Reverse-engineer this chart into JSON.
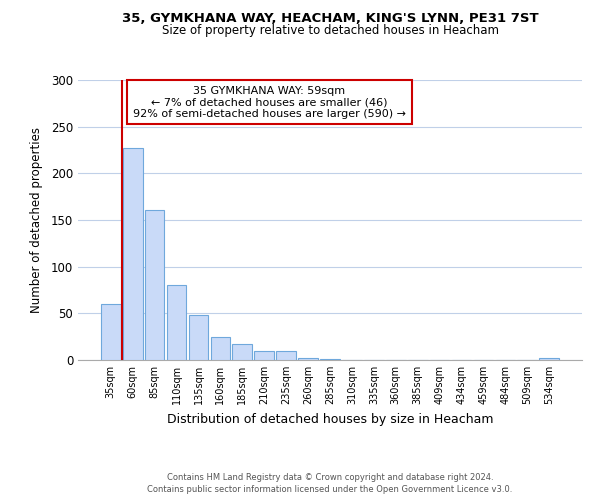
{
  "title_line1": "35, GYMKHANA WAY, HEACHAM, KING'S LYNN, PE31 7ST",
  "title_line2": "Size of property relative to detached houses in Heacham",
  "xlabel": "Distribution of detached houses by size in Heacham",
  "ylabel": "Number of detached properties",
  "bar_labels": [
    "35sqm",
    "60sqm",
    "85sqm",
    "110sqm",
    "135sqm",
    "160sqm",
    "185sqm",
    "210sqm",
    "235sqm",
    "260sqm",
    "285sqm",
    "310sqm",
    "335sqm",
    "360sqm",
    "385sqm",
    "409sqm",
    "434sqm",
    "459sqm",
    "484sqm",
    "509sqm",
    "534sqm"
  ],
  "bar_values": [
    60,
    227,
    161,
    80,
    48,
    25,
    17,
    10,
    10,
    2,
    1,
    0,
    0,
    0,
    0,
    0,
    0,
    0,
    0,
    0,
    2
  ],
  "bar_color": "#c9daf8",
  "bar_edge_color": "#6fa8dc",
  "annotation_title": "35 GYMKHANA WAY: 59sqm",
  "annotation_line1": "← 7% of detached houses are smaller (46)",
  "annotation_line2": "92% of semi-detached houses are larger (590) →",
  "annotation_box_color": "#ffffff",
  "annotation_box_edge_color": "#cc0000",
  "red_line_color": "#cc0000",
  "ylim": [
    0,
    300
  ],
  "yticks": [
    0,
    50,
    100,
    150,
    200,
    250,
    300
  ],
  "footer_line1": "Contains HM Land Registry data © Crown copyright and database right 2024.",
  "footer_line2": "Contains public sector information licensed under the Open Government Licence v3.0.",
  "background_color": "#ffffff",
  "grid_color": "#c0d0e8"
}
